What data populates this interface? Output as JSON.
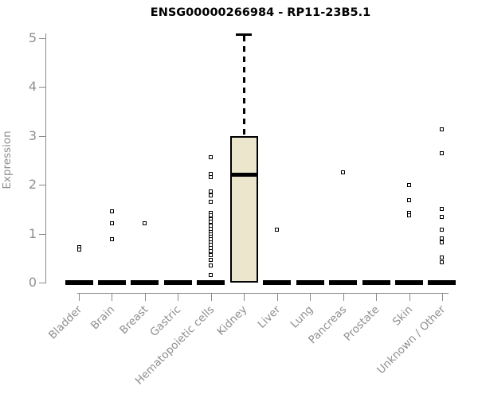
{
  "title": "ENSG00000266984 - RP11-23B5.1",
  "chart_data": {
    "type": "boxplot",
    "title": "ENSG00000266984 - RP11-23B5.1",
    "xlabel": "",
    "ylabel": "Expression",
    "ylim": [
      0,
      5.2
    ],
    "yticks": [
      0,
      1,
      2,
      3,
      4,
      5
    ],
    "grid": false,
    "legend": false,
    "colors": {
      "box_fill": "#ECE7CC",
      "box_stroke": "#000000",
      "axis": "#8a8a8a",
      "tick_text": "#8f8f8f",
      "title_text": "#000000"
    },
    "categories": [
      {
        "label": "Bladder",
        "box": {
          "q1": 0,
          "median": 0,
          "q3": 0,
          "whisker_high": 0
        },
        "points": [
          0.72,
          0.68
        ]
      },
      {
        "label": "Brain",
        "box": {
          "q1": 0,
          "median": 0,
          "q3": 0,
          "whisker_high": 0
        },
        "points": [
          1.45,
          1.22,
          0.88
        ]
      },
      {
        "label": "Breast",
        "box": {
          "q1": 0,
          "median": 0,
          "q3": 0,
          "whisker_high": 0
        },
        "points": [
          1.21
        ]
      },
      {
        "label": "Gastric",
        "box": {
          "q1": 0,
          "median": 0,
          "q3": 0,
          "whisker_high": 0
        },
        "points": []
      },
      {
        "label": "Hematopoietic cells",
        "box": {
          "q1": 0,
          "median": 0,
          "q3": 0,
          "whisker_high": 0
        },
        "points": [
          2.56,
          2.23,
          2.15,
          1.86,
          1.79,
          1.66,
          1.42,
          1.38,
          1.3,
          1.24,
          1.17,
          1.1,
          1.04,
          0.98,
          0.93,
          0.88,
          0.82,
          0.77,
          0.71,
          0.65,
          0.56,
          0.46,
          0.35,
          0.15
        ]
      },
      {
        "label": "Kidney",
        "box": {
          "q1": 0,
          "median": 2.21,
          "q3": 3.0,
          "whisker_high": 5.1
        },
        "points": []
      },
      {
        "label": "Liver",
        "box": {
          "q1": 0,
          "median": 0,
          "q3": 0,
          "whisker_high": 0
        },
        "points": [
          1.09
        ]
      },
      {
        "label": "Lung",
        "box": {
          "q1": 0,
          "median": 0,
          "q3": 0,
          "whisker_high": 0
        },
        "points": []
      },
      {
        "label": "Pancreas",
        "box": {
          "q1": 0,
          "median": 0,
          "q3": 0,
          "whisker_high": 0
        },
        "points": [
          2.26
        ]
      },
      {
        "label": "Prostate",
        "box": {
          "q1": 0,
          "median": 0,
          "q3": 0,
          "whisker_high": 0
        },
        "points": []
      },
      {
        "label": "Skin",
        "box": {
          "q1": 0,
          "median": 0,
          "q3": 0,
          "whisker_high": 0
        },
        "points": [
          1.99,
          1.69,
          1.43,
          1.37
        ]
      },
      {
        "label": "Unknown / Other",
        "box": {
          "q1": 0,
          "median": 0,
          "q3": 0,
          "whisker_high": 0
        },
        "points": [
          3.14,
          2.64,
          1.5,
          1.34,
          1.09,
          0.91,
          0.83,
          0.52,
          0.41
        ]
      }
    ]
  }
}
